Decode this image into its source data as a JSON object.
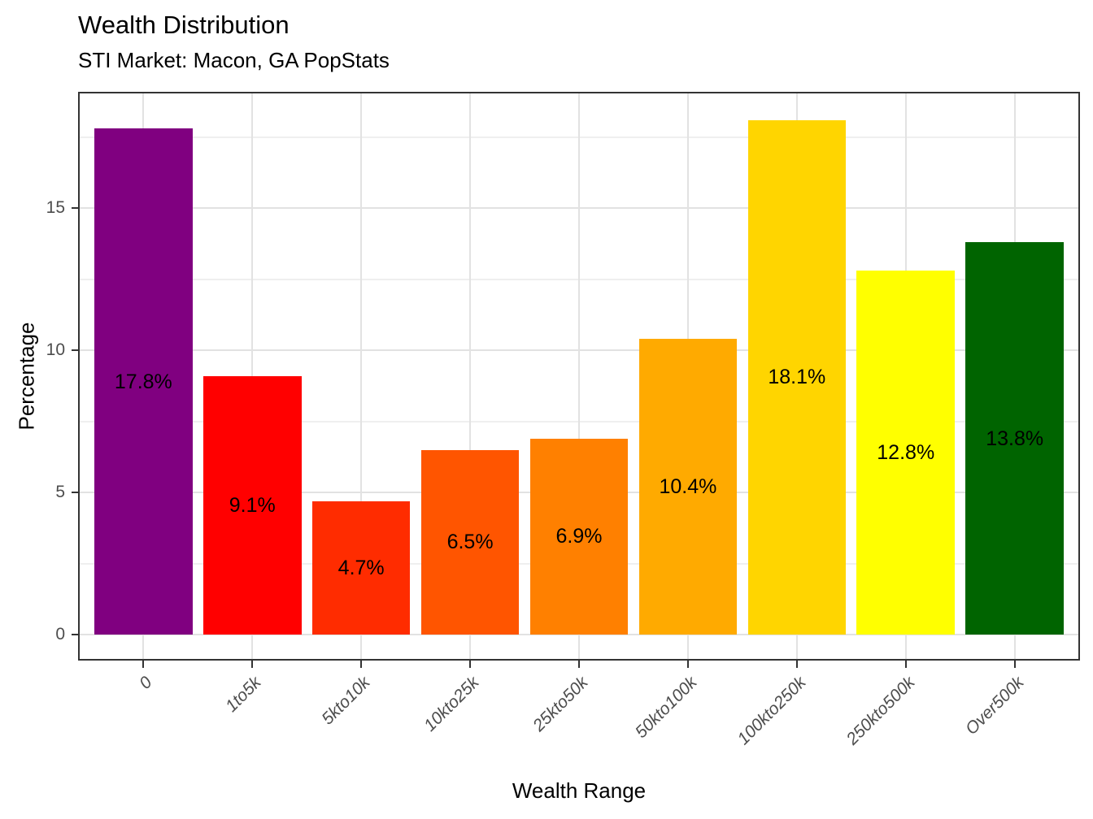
{
  "chart_data": {
    "type": "bar",
    "title": "Wealth Distribution",
    "subtitle": "STI Market: Macon, GA PopStats",
    "xlabel": "Wealth Range",
    "ylabel": "Percentage",
    "categories": [
      "0",
      "1to5k",
      "5kto10k",
      "10kto25k",
      "25kto50k",
      "50kto100k",
      "100kto250k",
      "250kto500k",
      "Over500k"
    ],
    "values": [
      17.8,
      9.1,
      4.7,
      6.5,
      6.9,
      10.4,
      18.1,
      12.8,
      13.8
    ],
    "bar_labels": [
      "17.8%",
      "9.1%",
      "4.7%",
      "6.5%",
      "6.9%",
      "10.4%",
      "18.1%",
      "12.8%",
      "13.8%"
    ],
    "bar_colors": [
      "#800080",
      "#FF0000",
      "#FF2C00",
      "#FF5500",
      "#FF8000",
      "#FFAA00",
      "#FFD500",
      "#FFFF00",
      "#006400"
    ],
    "y_ticks": [
      0,
      5,
      10,
      15
    ],
    "y_minor_ticks": [
      2.5,
      7.5,
      12.5,
      17.5
    ],
    "ylim": [
      -0.9,
      19.1
    ],
    "grid": true,
    "legend": false,
    "gridline_major_color": "#e2e2e2",
    "gridline_minor_color": "#efefef",
    "panel_border_color": "#333333",
    "tick_label_color": "#4d4d4d"
  }
}
